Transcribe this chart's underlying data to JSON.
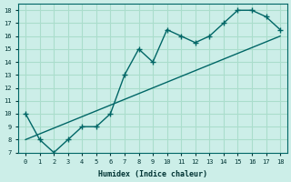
{
  "xlabel": "Humidex (Indice chaleur)",
  "ylabel": "",
  "bg_color": "#cceee8",
  "grid_color": "#aaddcc",
  "line_color": "#006666",
  "xlim": [
    -0.5,
    18.5
  ],
  "ylim": [
    7,
    18.5
  ],
  "xticks": [
    0,
    1,
    2,
    3,
    4,
    5,
    6,
    7,
    8,
    9,
    10,
    11,
    12,
    13,
    14,
    15,
    16,
    17,
    18
  ],
  "yticks": [
    7,
    8,
    9,
    10,
    11,
    12,
    13,
    14,
    15,
    16,
    17,
    18
  ],
  "curve_x": [
    0,
    1,
    2,
    3,
    4,
    5,
    6,
    7,
    8,
    9,
    10,
    11,
    12,
    13,
    14,
    15,
    16,
    17,
    18
  ],
  "curve_y": [
    10,
    8,
    7,
    8,
    9,
    9,
    10,
    13,
    15,
    14,
    16.5,
    16,
    15.5,
    16,
    17,
    18,
    18,
    17.5,
    16.5
  ],
  "line_x": [
    0,
    18
  ],
  "line_y": [
    8,
    16
  ]
}
